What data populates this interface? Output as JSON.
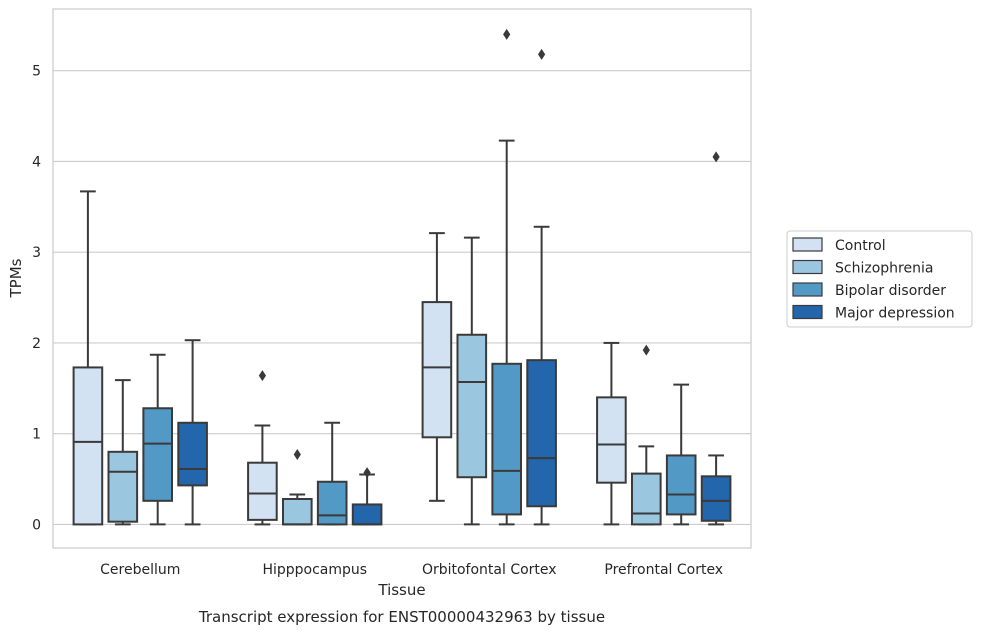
{
  "chart_data": {
    "type": "box",
    "xlabel": "Tissue",
    "ylabel": "TPMs",
    "caption": "Transcript expression for ENST00000432963 by tissue",
    "ylim": [
      -0.26,
      5.68
    ],
    "yticks": [
      0,
      1,
      2,
      3,
      4,
      5
    ],
    "grid": "horizontal",
    "legend_position": "right",
    "categories": [
      "Cerebellum",
      "Hipppocampus",
      "Orbitofontal Cortex",
      "Prefrontal Cortex"
    ],
    "series": [
      {
        "name": "Control",
        "color": "#d2e2f2",
        "boxes": [
          {
            "whislo": 0.0,
            "q1": 0.0,
            "med": 0.91,
            "q3": 1.73,
            "whishi": 3.67,
            "fliers": []
          },
          {
            "whislo": 0.0,
            "q1": 0.05,
            "med": 0.34,
            "q3": 0.68,
            "whishi": 1.09,
            "fliers": [
              1.64
            ]
          },
          {
            "whislo": 0.26,
            "q1": 0.96,
            "med": 1.73,
            "q3": 2.45,
            "whishi": 3.21,
            "fliers": []
          },
          {
            "whislo": 0.0,
            "q1": 0.46,
            "med": 0.88,
            "q3": 1.4,
            "whishi": 2.0,
            "fliers": []
          }
        ]
      },
      {
        "name": "Schizophrenia",
        "color": "#9ac7df",
        "boxes": [
          {
            "whislo": 0.0,
            "q1": 0.03,
            "med": 0.58,
            "q3": 0.8,
            "whishi": 1.59,
            "fliers": []
          },
          {
            "whislo": 0.0,
            "q1": 0.0,
            "med": 0.0,
            "q3": 0.28,
            "whishi": 0.33,
            "fliers": [
              0.77
            ]
          },
          {
            "whislo": 0.0,
            "q1": 0.52,
            "med": 1.57,
            "q3": 2.09,
            "whishi": 3.16,
            "fliers": []
          },
          {
            "whislo": 0.0,
            "q1": 0.0,
            "med": 0.12,
            "q3": 0.56,
            "whishi": 0.86,
            "fliers": [
              1.92
            ]
          }
        ]
      },
      {
        "name": "Bipolar disorder",
        "color": "#5399c6",
        "boxes": [
          {
            "whislo": 0.0,
            "q1": 0.26,
            "med": 0.89,
            "q3": 1.28,
            "whishi": 1.87,
            "fliers": []
          },
          {
            "whislo": 0.0,
            "q1": 0.0,
            "med": 0.1,
            "q3": 0.47,
            "whishi": 1.12,
            "fliers": []
          },
          {
            "whislo": 0.0,
            "q1": 0.11,
            "med": 0.59,
            "q3": 1.77,
            "whishi": 4.23,
            "fliers": [
              5.4
            ]
          },
          {
            "whislo": 0.0,
            "q1": 0.11,
            "med": 0.33,
            "q3": 0.76,
            "whishi": 1.54,
            "fliers": []
          }
        ]
      },
      {
        "name": "Major depression",
        "color": "#2366ab",
        "boxes": [
          {
            "whislo": 0.0,
            "q1": 0.43,
            "med": 0.61,
            "q3": 1.12,
            "whishi": 2.03,
            "fliers": []
          },
          {
            "whislo": 0.0,
            "q1": 0.0,
            "med": 0.0,
            "q3": 0.22,
            "whishi": 0.55,
            "fliers": [
              0.57
            ]
          },
          {
            "whislo": 0.0,
            "q1": 0.2,
            "med": 0.73,
            "q3": 1.81,
            "whishi": 3.28,
            "fliers": [
              5.18
            ]
          },
          {
            "whislo": 0.0,
            "q1": 0.04,
            "med": 0.26,
            "q3": 0.53,
            "whishi": 0.76,
            "fliers": [
              4.05
            ]
          }
        ]
      }
    ]
  }
}
